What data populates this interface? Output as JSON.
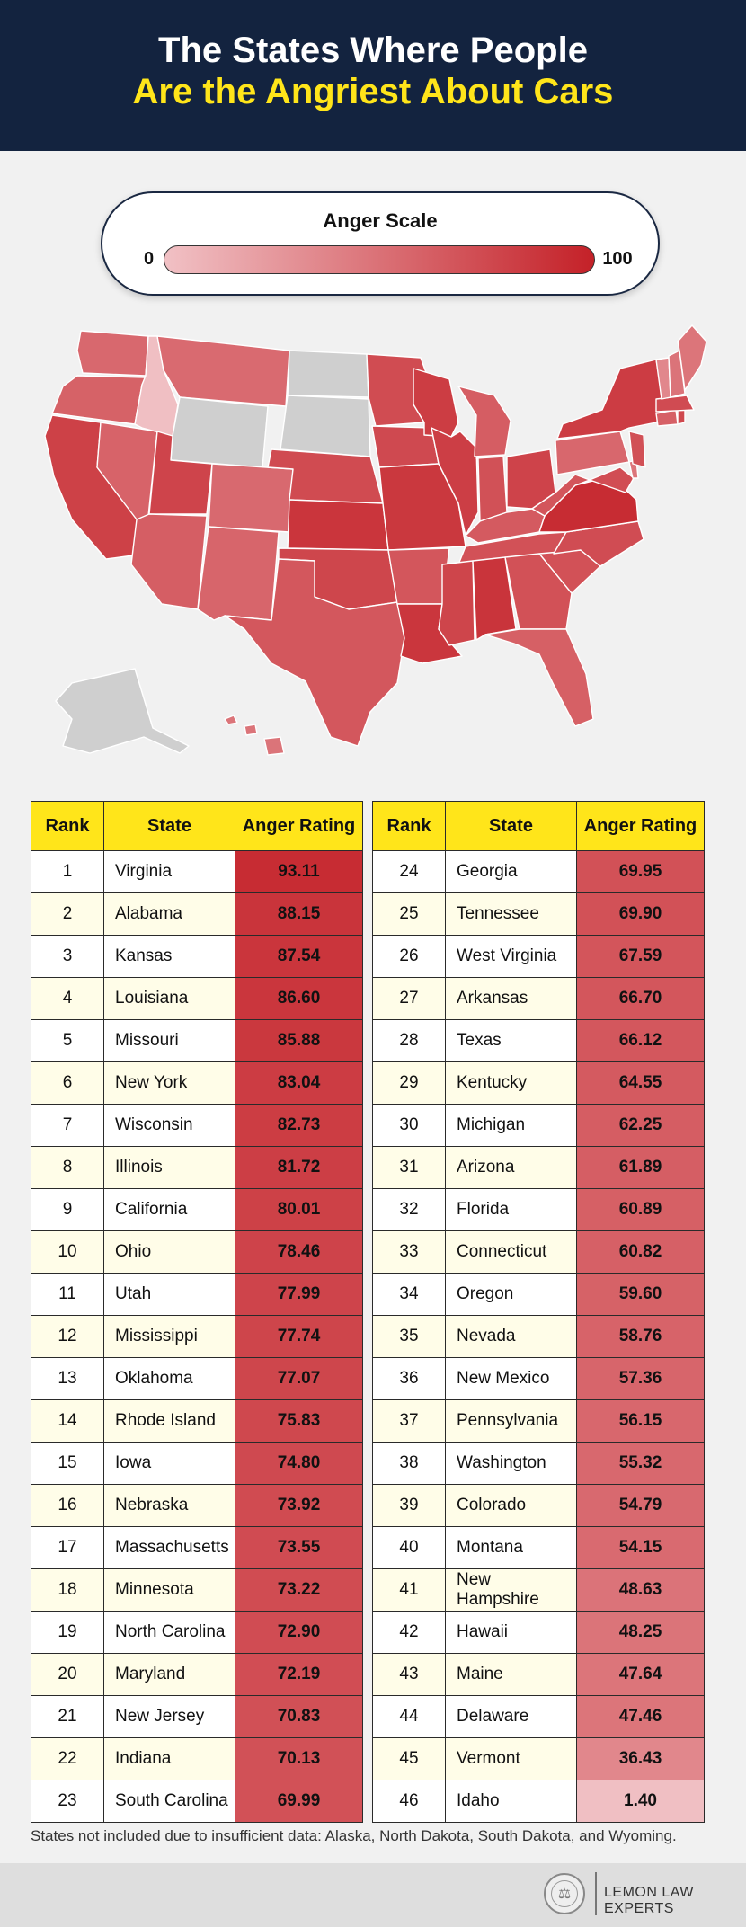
{
  "title": {
    "line1": "The States Where People",
    "line2": "Are the Angriest About Cars"
  },
  "scale": {
    "title": "Anger Scale",
    "min_label": "0",
    "max_label": "100",
    "low_color": "#f1c1c5",
    "high_color": "#c42128"
  },
  "colors": {
    "header_bg": "#13233f",
    "title_white": "#ffffff",
    "title_yellow": "#ffe51a",
    "table_header": "#ffe51a",
    "no_data": "#cfcfcf"
  },
  "table": {
    "headers": {
      "rank": "Rank",
      "state": "State",
      "rating": "Anger Rating"
    }
  },
  "chart_data": {
    "type": "table",
    "columns": [
      "Rank",
      "State",
      "Anger Rating"
    ],
    "rows": [
      {
        "rank": "1",
        "state": "Virginia",
        "rating": "93.11"
      },
      {
        "rank": "2",
        "state": "Alabama",
        "rating": "88.15"
      },
      {
        "rank": "3",
        "state": "Kansas",
        "rating": "87.54"
      },
      {
        "rank": "4",
        "state": "Louisiana",
        "rating": "86.60"
      },
      {
        "rank": "5",
        "state": "Missouri",
        "rating": "85.88"
      },
      {
        "rank": "6",
        "state": "New York",
        "rating": "83.04"
      },
      {
        "rank": "7",
        "state": "Wisconsin",
        "rating": "82.73"
      },
      {
        "rank": "8",
        "state": "Illinois",
        "rating": "81.72"
      },
      {
        "rank": "9",
        "state": "California",
        "rating": "80.01"
      },
      {
        "rank": "10",
        "state": "Ohio",
        "rating": "78.46"
      },
      {
        "rank": "11",
        "state": "Utah",
        "rating": "77.99"
      },
      {
        "rank": "12",
        "state": "Mississippi",
        "rating": "77.74"
      },
      {
        "rank": "13",
        "state": "Oklahoma",
        "rating": "77.07"
      },
      {
        "rank": "14",
        "state": "Rhode Island",
        "rating": "75.83"
      },
      {
        "rank": "15",
        "state": "Iowa",
        "rating": "74.80"
      },
      {
        "rank": "16",
        "state": "Nebraska",
        "rating": "73.92"
      },
      {
        "rank": "17",
        "state": "Massachusetts",
        "rating": "73.55"
      },
      {
        "rank": "18",
        "state": "Minnesota",
        "rating": "73.22"
      },
      {
        "rank": "19",
        "state": "North Carolina",
        "rating": "72.90"
      },
      {
        "rank": "20",
        "state": "Maryland",
        "rating": "72.19"
      },
      {
        "rank": "21",
        "state": "New Jersey",
        "rating": "70.83"
      },
      {
        "rank": "22",
        "state": "Indiana",
        "rating": "70.13"
      },
      {
        "rank": "23",
        "state": "South Carolina",
        "rating": "69.99"
      },
      {
        "rank": "24",
        "state": "Georgia",
        "rating": "69.95"
      },
      {
        "rank": "25",
        "state": "Tennessee",
        "rating": "69.90"
      },
      {
        "rank": "26",
        "state": "West Virginia",
        "rating": "67.59"
      },
      {
        "rank": "27",
        "state": "Arkansas",
        "rating": "66.70"
      },
      {
        "rank": "28",
        "state": "Texas",
        "rating": "66.12"
      },
      {
        "rank": "29",
        "state": "Kentucky",
        "rating": "64.55"
      },
      {
        "rank": "30",
        "state": "Michigan",
        "rating": "62.25"
      },
      {
        "rank": "31",
        "state": "Arizona",
        "rating": "61.89"
      },
      {
        "rank": "32",
        "state": "Florida",
        "rating": "60.89"
      },
      {
        "rank": "33",
        "state": "Connecticut",
        "rating": "60.82"
      },
      {
        "rank": "34",
        "state": "Oregon",
        "rating": "59.60"
      },
      {
        "rank": "35",
        "state": "Nevada",
        "rating": "58.76"
      },
      {
        "rank": "36",
        "state": "New Mexico",
        "rating": "57.36"
      },
      {
        "rank": "37",
        "state": "Pennsylvania",
        "rating": "56.15"
      },
      {
        "rank": "38",
        "state": "Washington",
        "rating": "55.32"
      },
      {
        "rank": "39",
        "state": "Colorado",
        "rating": "54.79"
      },
      {
        "rank": "40",
        "state": "Montana",
        "rating": "54.15"
      },
      {
        "rank": "41",
        "state": "New Hampshire",
        "rating": "48.63"
      },
      {
        "rank": "42",
        "state": "Hawaii",
        "rating": "48.25"
      },
      {
        "rank": "43",
        "state": "Maine",
        "rating": "47.64"
      },
      {
        "rank": "44",
        "state": "Delaware",
        "rating": "47.46"
      },
      {
        "rank": "45",
        "state": "Vermont",
        "rating": "36.43"
      },
      {
        "rank": "46",
        "state": "Idaho",
        "rating": "1.40"
      }
    ],
    "no_data_states": [
      "Alaska",
      "North Dakota",
      "South Dakota",
      "Wyoming"
    ]
  },
  "note": "States not included due to insufficient data: Alaska, North Dakota, South Dakota, and Wyoming.",
  "footer": {
    "brand": "LEMON LAW EXPERTS",
    "logo_icon": "scales-of-justice-seal-icon"
  }
}
